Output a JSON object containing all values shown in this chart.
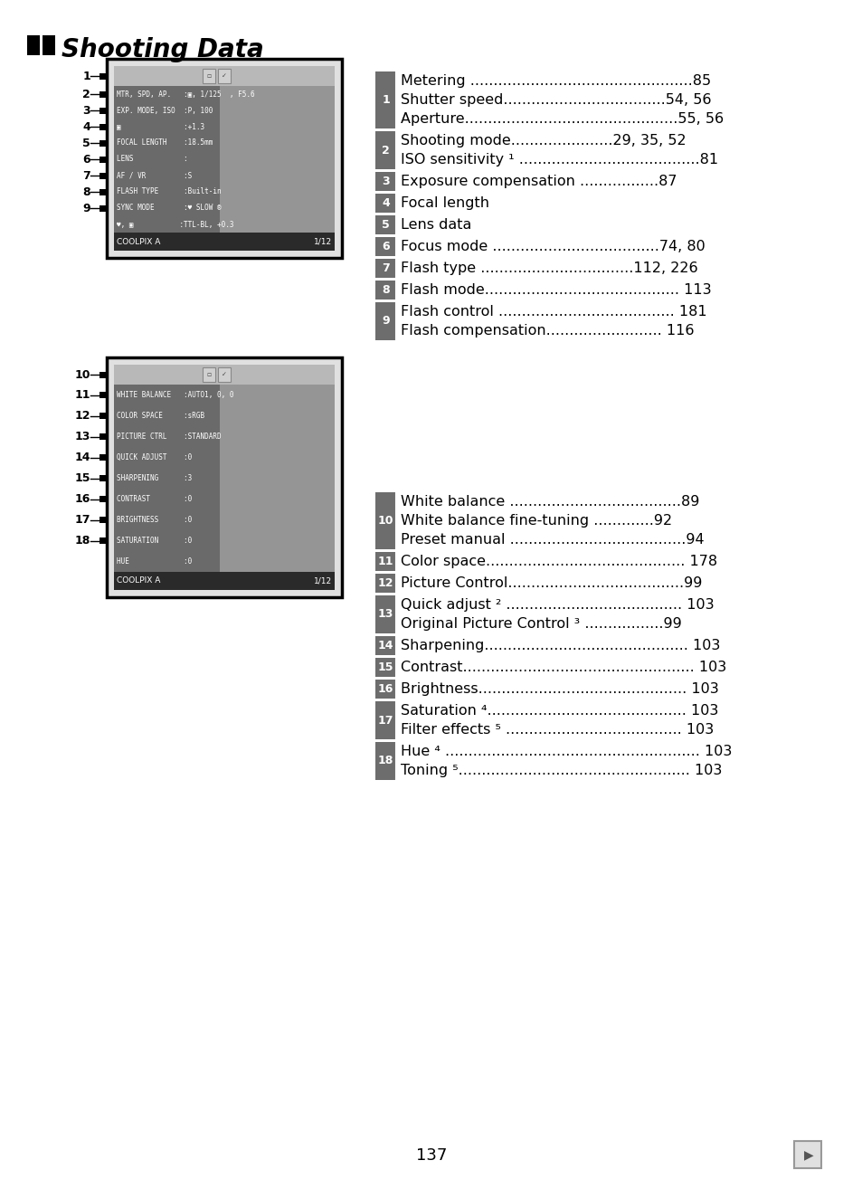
{
  "title": "Shooting Data",
  "bg_color": "#ffffff",
  "page_number": "137",
  "gray_label_color": "#6d6d6d",
  "right_entries_1": [
    {
      "num": "1",
      "lines": [
        "Metering ................................................85",
        "Shutter speed...................................54, 56",
        "Aperture..............................................55, 56"
      ]
    },
    {
      "num": "2",
      "lines": [
        "Shooting mode......................29, 35, 52",
        "ISO sensitivity ¹ .......................................81"
      ]
    },
    {
      "num": "3",
      "lines": [
        "Exposure compensation .................87"
      ]
    },
    {
      "num": "4",
      "lines": [
        "Focal length"
      ]
    },
    {
      "num": "5",
      "lines": [
        "Lens data"
      ]
    },
    {
      "num": "6",
      "lines": [
        "Focus mode ....................................74, 80"
      ]
    },
    {
      "num": "7",
      "lines": [
        "Flash type .................................112, 226"
      ]
    },
    {
      "num": "8",
      "lines": [
        "Flash mode.......................................... 113"
      ]
    },
    {
      "num": "9",
      "lines": [
        "Flash control ...................................... 181",
        "Flash compensation......................... 116"
      ]
    }
  ],
  "right_entries_2": [
    {
      "num": "10",
      "lines": [
        "White balance .....................................89",
        "White balance fine-tuning .............92",
        "Preset manual ......................................94"
      ]
    },
    {
      "num": "11",
      "lines": [
        "Color space........................................... 178"
      ]
    },
    {
      "num": "12",
      "lines": [
        "Picture Control......................................99"
      ]
    },
    {
      "num": "13",
      "lines": [
        "Quick adjust ² ...................................... 103",
        "Original Picture Control ³ .................99"
      ]
    },
    {
      "num": "14",
      "lines": [
        "Sharpening............................................ 103"
      ]
    },
    {
      "num": "15",
      "lines": [
        "Contrast.................................................. 103"
      ]
    },
    {
      "num": "16",
      "lines": [
        "Brightness............................................. 103"
      ]
    },
    {
      "num": "17",
      "lines": [
        "Saturation ⁴........................................... 103",
        "Filter effects ⁵ ...................................... 103"
      ]
    },
    {
      "num": "18",
      "lines": [
        "Hue ⁴ ....................................................... 103",
        "Toning ⁵.................................................. 103"
      ]
    }
  ],
  "screen1_lines": [
    "MTR, SPD, AP.   :▣, 1/125  , F5.6",
    "EXP. MODE, ISO  :P, 100",
    "▣               :+1.3",
    "FOCAL LENGTH    :18.5mm",
    "LENS            :",
    "AF / VR         :S",
    "FLASH TYPE      :Built-in",
    "SYNC MODE       :♥ SLOW ®",
    "♥, ▣           :TTL-BL, +0.3"
  ],
  "screen2_lines": [
    "WHITE BALANCE   :AUTO1, 0, 0",
    "COLOR SPACE     :sRGB",
    "PICTURE CTRL    :STANDARD",
    "QUICK ADJUST    :0",
    "SHARPENING      :3",
    "CONTRAST        :0",
    "BRIGHTNESS      :0",
    "SATURATION      :0",
    "HUE             :0"
  ],
  "left_nums_1": [
    "1",
    "2",
    "3",
    "4",
    "5",
    "6",
    "7",
    "8",
    "9"
  ],
  "left_nums_2": [
    "10",
    "11",
    "12",
    "13",
    "14",
    "15",
    "16",
    "17",
    "18"
  ],
  "screen1_num_rows": [
    1,
    1,
    1,
    1,
    1,
    1,
    1,
    1,
    1
  ],
  "screen2_num_rows": [
    1,
    1,
    1,
    1,
    1,
    1,
    1,
    1,
    1
  ]
}
